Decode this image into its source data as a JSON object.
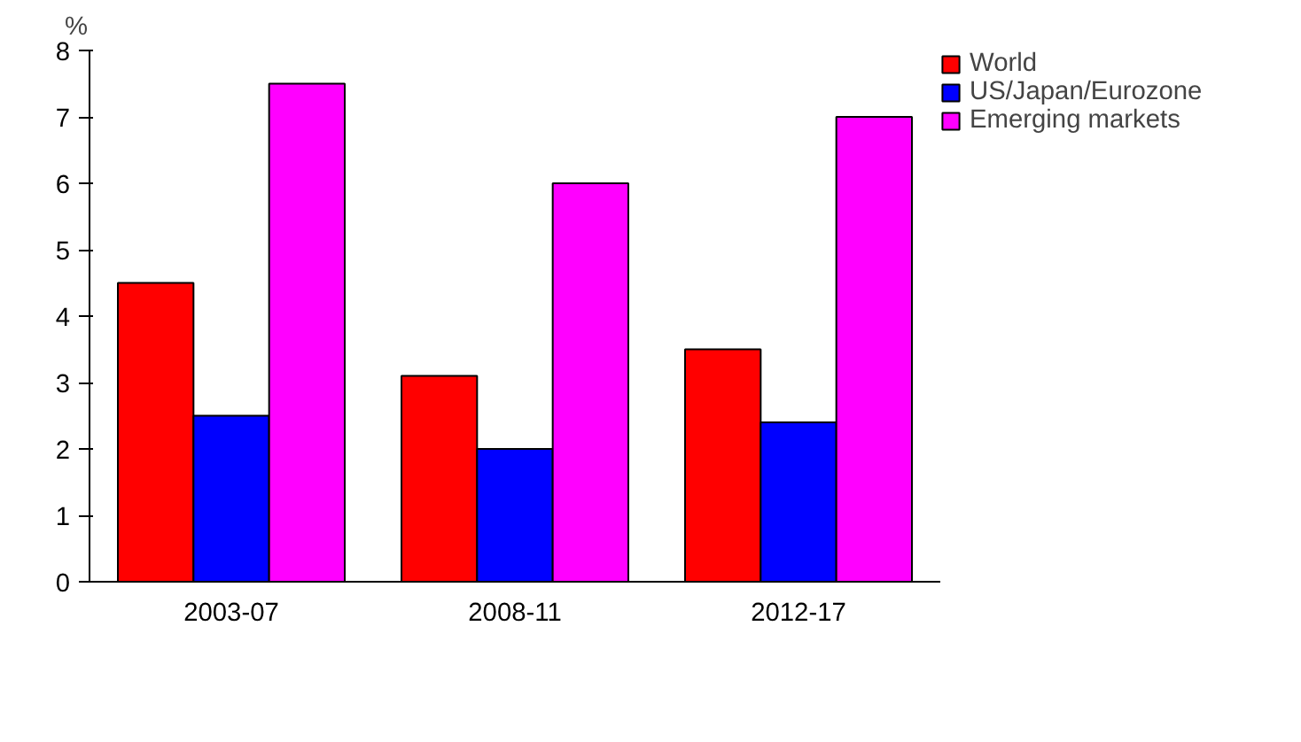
{
  "chart_data": {
    "type": "bar",
    "ylabel": "%",
    "categories": [
      "2003-07",
      "2008-11",
      "2012-17"
    ],
    "series": [
      {
        "name": "World",
        "color": "#ff0000",
        "values": [
          4.5,
          3.1,
          3.5
        ]
      },
      {
        "name": "US/Japan/Eurozone",
        "color": "#0000ff",
        "values": [
          2.5,
          2.0,
          2.4
        ]
      },
      {
        "name": "Emerging markets",
        "color": "#ff00ff",
        "values": [
          7.5,
          6.0,
          7.0
        ]
      }
    ],
    "ylim": [
      0,
      8
    ],
    "yticks": [
      0,
      1,
      2,
      3,
      4,
      5,
      6,
      7,
      8
    ],
    "grid": false,
    "legend": "top right"
  }
}
